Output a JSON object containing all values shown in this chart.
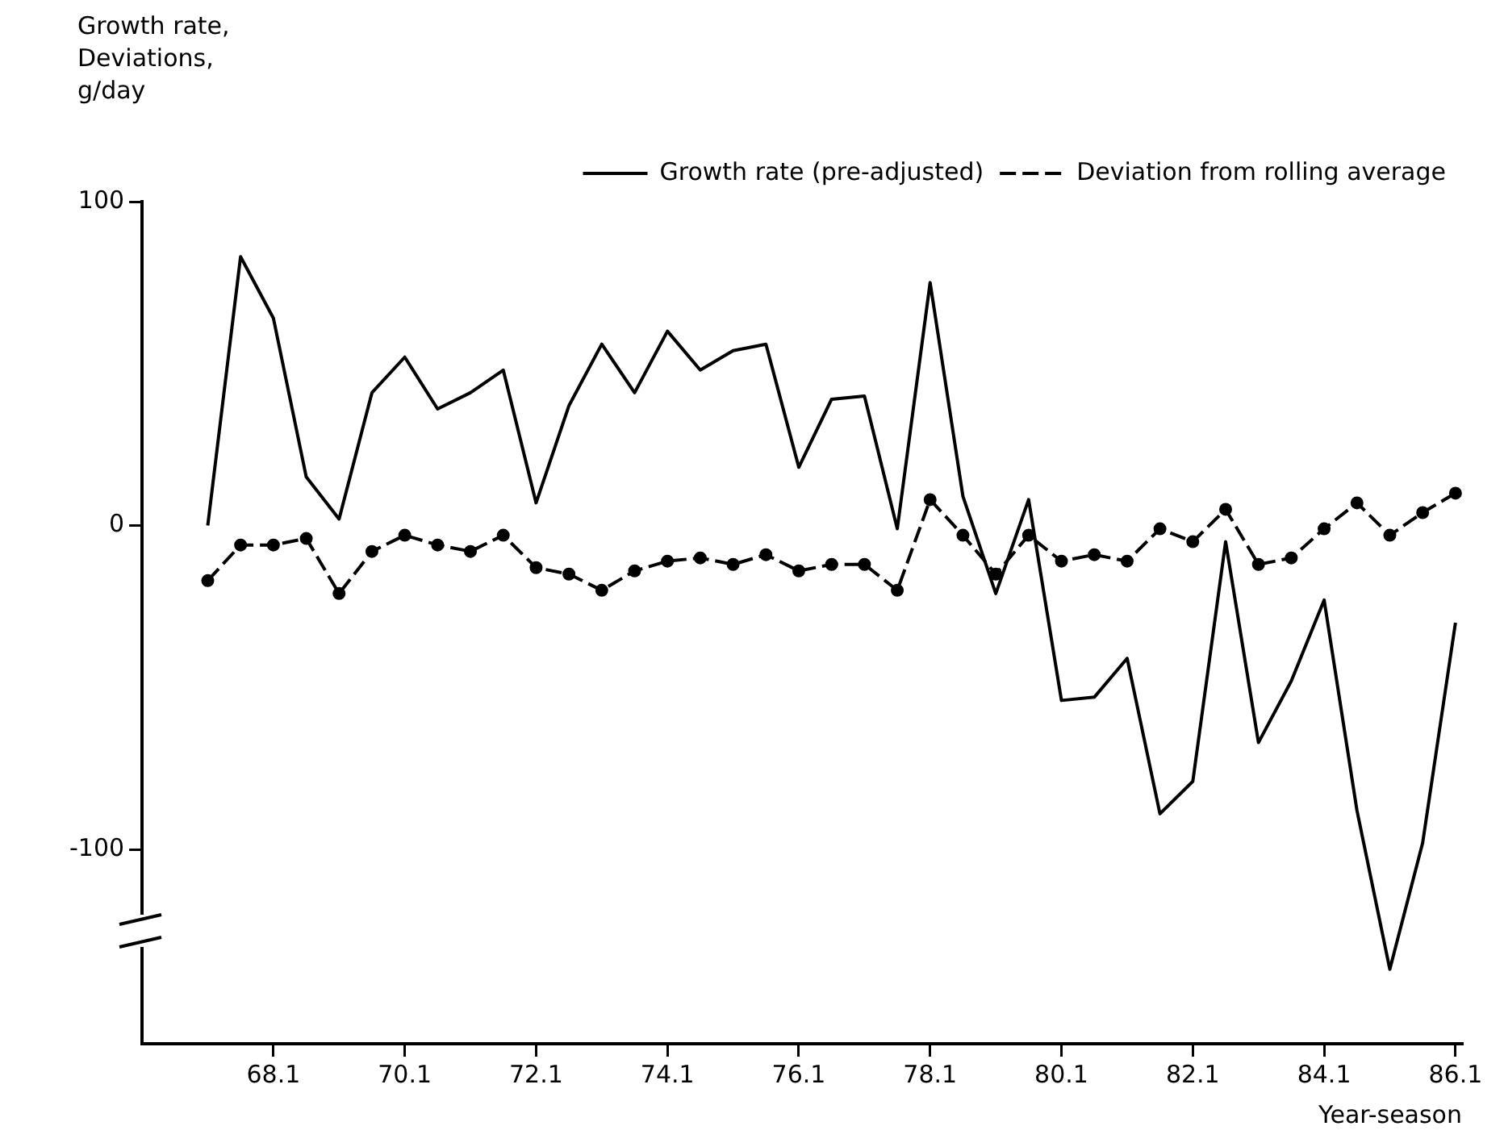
{
  "chart_data": {
    "type": "line",
    "ylabel": "Growth rate,\nDeviations,\ng/day",
    "xlabel": "Year-season",
    "x": [
      67.1,
      67.6,
      68.1,
      68.6,
      69.1,
      69.6,
      70.1,
      70.6,
      71.1,
      71.6,
      72.1,
      72.6,
      73.1,
      73.6,
      74.1,
      74.6,
      75.1,
      75.6,
      76.1,
      76.6,
      77.1,
      77.6,
      78.1,
      78.6,
      79.1,
      79.6,
      80.1,
      80.6,
      81.1,
      81.6,
      82.1,
      82.6,
      83.1,
      83.6,
      84.1,
      84.6,
      85.1,
      85.6,
      86.1
    ],
    "series": [
      {
        "name": "Growth rate (pre-adjusted)",
        "color": "#000000",
        "line_style": "solid",
        "marker": "none",
        "values": [
          0,
          83,
          64,
          15,
          2,
          41,
          52,
          36,
          41,
          48,
          7,
          37,
          56,
          41,
          60,
          48,
          54,
          56,
          18,
          39,
          40,
          -1,
          75,
          9,
          -21,
          8,
          -54,
          -53,
          -41,
          -89,
          -79,
          -5,
          -67,
          -48,
          -23,
          -88,
          -137,
          -98,
          -30
        ]
      },
      {
        "name": "Deviation from rolling average",
        "color": "#000000",
        "line_style": "dashed",
        "marker": "circle",
        "values": [
          -17,
          -6,
          -6,
          -4,
          -21,
          -8,
          -3,
          -6,
          -8,
          -3,
          -13,
          -15,
          -20,
          -14,
          -11,
          -10,
          -12,
          -9,
          -14,
          -12,
          -12,
          -20,
          8,
          -3,
          -15,
          -3,
          -11,
          -9,
          -11,
          -1,
          -5,
          5,
          -12,
          -10,
          -1,
          7,
          -3,
          4,
          10
        ]
      }
    ],
    "xlim": [
      66.1,
      86.2
    ],
    "xticks": [
      68.1,
      70.1,
      72.1,
      74.1,
      76.1,
      78.1,
      80.1,
      82.1,
      84.1,
      86.1
    ],
    "ylim": [
      -160,
      100
    ],
    "yticks": [
      -100,
      0,
      100
    ],
    "grid": false,
    "legend": "top right"
  }
}
